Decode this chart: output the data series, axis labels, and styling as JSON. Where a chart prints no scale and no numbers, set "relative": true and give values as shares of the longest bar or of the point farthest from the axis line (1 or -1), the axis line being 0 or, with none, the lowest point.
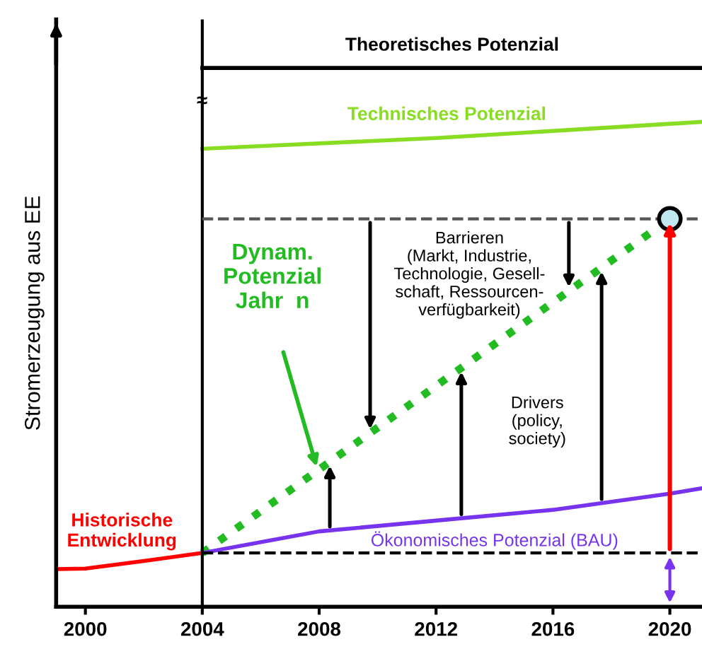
{
  "chart_data": {
    "type": "line",
    "relative": true,
    "ylabel": "Stromerzeugung aus EE",
    "xlim": [
      1999,
      2021.1
    ],
    "xticks": [
      2000,
      2004,
      2008,
      2012,
      2016,
      2020
    ],
    "grid": false,
    "legend": false,
    "series": [
      {
        "name": "Theoretisches Potenzial",
        "color": "#000000",
        "x": [
          2004,
          2021.1
        ],
        "values": [
          1,
          1
        ],
        "line_style": "solid"
      },
      {
        "name": "Technisches Potenzial",
        "color": "#88dd22",
        "x": [
          2004,
          2012,
          2021.1
        ],
        "values": [
          0.85,
          0.87,
          0.9
        ],
        "line_style": "solid"
      },
      {
        "name": "Historische\nEntwicklung",
        "color": "#ff0000",
        "x": [
          1999,
          2000,
          2002,
          2004
        ],
        "values": [
          0.07,
          0.071,
          0.085,
          0.1
        ],
        "line_style": "solid"
      },
      {
        "color": "#22bb22",
        "x": [
          2004,
          2020
        ],
        "values": [
          0.1,
          0.72
        ],
        "line_style": "dotted"
      },
      {
        "color": "#7733ee",
        "x": [
          2004,
          2008,
          2012,
          2016,
          2020,
          2021.1
        ],
        "values": [
          0.1,
          0.14,
          0.16,
          0.18,
          0.21,
          0.22
        ],
        "line_style": "solid"
      }
    ],
    "ref_lines": [
      {
        "axis": "x",
        "value": 2004,
        "color": "#000000",
        "line_style": "solid"
      },
      {
        "axis": "y",
        "value": 0.72,
        "color": "#555555",
        "line_style": "dashed"
      },
      {
        "axis": "y",
        "value": 0.1,
        "color": "#000000",
        "line_style": "dashed"
      }
    ],
    "annotations": [
      {
        "text": "Ökonomisches Potenzial (BAU)",
        "x": 2014,
        "y": 0.17
      },
      "Dynam.\nPotenzial\nJahr  n",
      "Barrieren\n(Markt, Industrie,\nTechnologie, Gesell-\nschaft, Ressourcen-\nverfügbarkeit)",
      "Drivers\n(policy,\nsociety)",
      "≈"
    ]
  }
}
